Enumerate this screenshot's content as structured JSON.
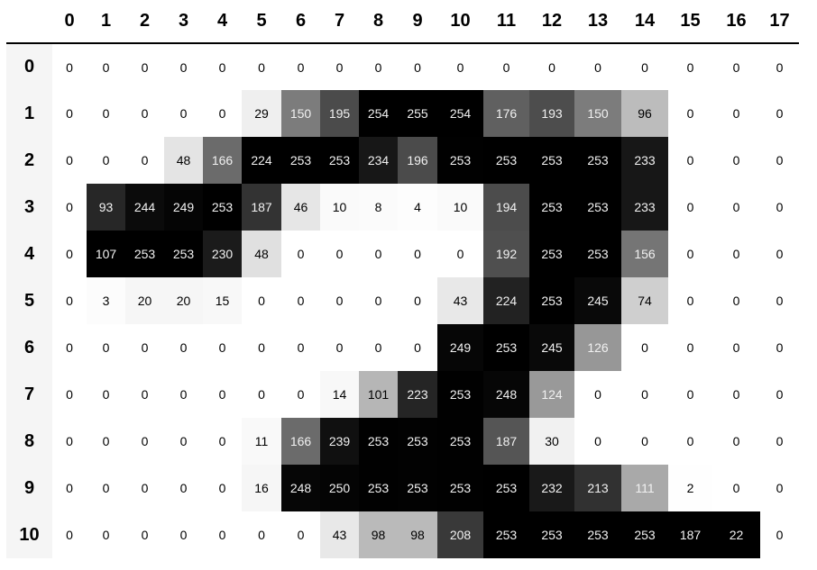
{
  "table": {
    "columns": [
      "0",
      "1",
      "2",
      "3",
      "4",
      "5",
      "6",
      "7",
      "8",
      "9",
      "10",
      "11",
      "12",
      "13",
      "14",
      "15",
      "16",
      "17"
    ],
    "index": [
      "0",
      "1",
      "2",
      "3",
      "4",
      "5",
      "6",
      "7",
      "8",
      "9",
      "10"
    ],
    "rows": [
      [
        0,
        0,
        0,
        0,
        0,
        0,
        0,
        0,
        0,
        0,
        0,
        0,
        0,
        0,
        0,
        0,
        0,
        0
      ],
      [
        0,
        0,
        0,
        0,
        0,
        29,
        150,
        195,
        254,
        255,
        254,
        176,
        193,
        150,
        96,
        0,
        0,
        0
      ],
      [
        0,
        0,
        0,
        48,
        166,
        224,
        253,
        253,
        234,
        196,
        253,
        253,
        253,
        253,
        233,
        0,
        0,
        0
      ],
      [
        0,
        93,
        244,
        249,
        253,
        187,
        46,
        10,
        8,
        4,
        10,
        194,
        253,
        253,
        233,
        0,
        0,
        0
      ],
      [
        0,
        107,
        253,
        253,
        230,
        48,
        0,
        0,
        0,
        0,
        0,
        192,
        253,
        253,
        156,
        0,
        0,
        0
      ],
      [
        0,
        3,
        20,
        20,
        15,
        0,
        0,
        0,
        0,
        0,
        43,
        224,
        253,
        245,
        74,
        0,
        0,
        0
      ],
      [
        0,
        0,
        0,
        0,
        0,
        0,
        0,
        0,
        0,
        0,
        249,
        253,
        245,
        126,
        0,
        0,
        0,
        0
      ],
      [
        0,
        0,
        0,
        0,
        0,
        0,
        0,
        14,
        101,
        223,
        253,
        248,
        124,
        0,
        0,
        0,
        0,
        0
      ],
      [
        0,
        0,
        0,
        0,
        0,
        11,
        166,
        239,
        253,
        253,
        253,
        187,
        30,
        0,
        0,
        0,
        0,
        0
      ],
      [
        0,
        0,
        0,
        0,
        0,
        16,
        248,
        250,
        253,
        253,
        253,
        253,
        232,
        213,
        111,
        2,
        0,
        0
      ],
      [
        0,
        0,
        0,
        0,
        0,
        0,
        0,
        43,
        98,
        98,
        208,
        253,
        253,
        253,
        253,
        187,
        22,
        0
      ]
    ]
  },
  "colormap": "Greys",
  "gradient_axis": "column"
}
